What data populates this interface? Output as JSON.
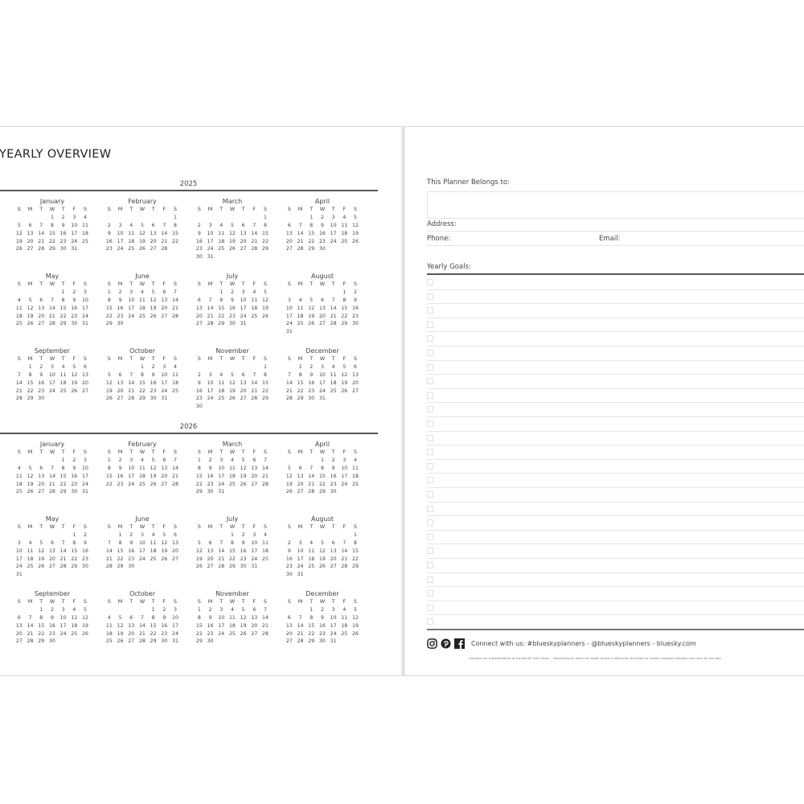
{
  "left": {
    "title": "YEARLY OVERVIEW",
    "weekdays": [
      "S",
      "M",
      "T",
      "W",
      "T",
      "F",
      "S"
    ],
    "years": [
      {
        "year": "2025",
        "months": [
          {
            "name": "January",
            "weeks": [
              ",,,1,2,3,4",
              "5,6,7,8,9,10,11",
              "12,13,14,15,16,17,18",
              "19,20,21,22,23,24,25",
              "26,27,28,29,30,31"
            ]
          },
          {
            "name": "February",
            "weeks": [
              ",,,,,,1",
              "2,3,4,5,6,7,8",
              "9,10,11,12,13,14,15",
              "16,17,18,19,20,21,22",
              "23,24,25,26,27,28"
            ]
          },
          {
            "name": "March",
            "weeks": [
              ",,,,,,1",
              "2,3,4,5,6,7,8",
              "9,10,11,12,13,14,15",
              "16,17,18,19,20,21,22",
              "23,24,25,26,27,28,29",
              "30,31"
            ]
          },
          {
            "name": "April",
            "weeks": [
              ",,1,2,3,4,5",
              "6,7,8,9,10,11,12",
              "13,14,15,16,17,18,19",
              "20,21,22,23,24,25,26",
              "27,28,29,30"
            ]
          },
          {
            "name": "May",
            "weeks": [
              ",,,,1,2,3",
              "4,5,6,7,8,9,10",
              "11,12,13,14,15,16,17",
              "18,19,20,21,22,23,24",
              "25,26,27,28,29,30,31"
            ]
          },
          {
            "name": "June",
            "weeks": [
              "1,2,3,4,5,6,7",
              "8,9,10,11,12,13,14",
              "15,16,17,18,19,20,21",
              "22,23,24,25,26,27,28",
              "29,30"
            ]
          },
          {
            "name": "July",
            "weeks": [
              ",,1,2,3,4,5",
              "6,7,8,9,10,11,12",
              "13,14,15,16,17,18,19",
              "20,21,22,23,24,25,26",
              "27,28,29,30,31"
            ]
          },
          {
            "name": "August",
            "weeks": [
              ",,,,,1,2",
              "3,4,5,6,7,8,9",
              "10,11,12,13,14,15,16",
              "17,18,19,20,21,22,23",
              "24,25,26,27,28,29,30",
              "31"
            ]
          },
          {
            "name": "September",
            "weeks": [
              ",1,2,3,4,5,6",
              "7,8,9,10,11,12,13",
              "14,15,16,17,18,19,20",
              "21,22,23,24,25,26,27",
              "28,29,30"
            ]
          },
          {
            "name": "October",
            "weeks": [
              ",,,1,2,3,4",
              "5,6,7,8,9,10,11",
              "12,13,14,15,16,17,18",
              "19,20,21,22,23,24,25",
              "26,27,28,29,30,31"
            ]
          },
          {
            "name": "November",
            "weeks": [
              ",,,,,,1",
              "2,3,4,5,6,7,8",
              "9,10,11,12,13,14,15",
              "16,17,18,19,20,21,22",
              "23,24,25,26,27,28,29",
              "30"
            ]
          },
          {
            "name": "December",
            "weeks": [
              ",1,2,3,4,5,6",
              "7,8,9,10,11,12,13",
              "14,15,16,17,18,19,20",
              "21,22,23,24,25,26,27",
              "28,29,30,31"
            ]
          }
        ]
      },
      {
        "year": "2026",
        "months": [
          {
            "name": "January",
            "weeks": [
              ",,,,1,2,3",
              "4,5,6,7,8,9,10",
              "11,12,13,14,15,16,17",
              "18,19,20,21,22,23,24",
              "25,26,27,28,29,30,31"
            ]
          },
          {
            "name": "February",
            "weeks": [
              "1,2,3,4,5,6,7",
              "8,9,10,11,12,13,14",
              "15,16,17,18,19,20,21",
              "22,23,24,25,26,27,28"
            ]
          },
          {
            "name": "March",
            "weeks": [
              "1,2,3,4,5,6,7",
              "8,9,10,11,12,13,14",
              "15,16,17,18,19,20,21",
              "22,23,24,25,26,27,28",
              "29,30,31"
            ]
          },
          {
            "name": "April",
            "weeks": [
              ",,,1,2,3,4",
              "5,6,7,8,9,10,11",
              "12,13,14,15,16,17,18",
              "19,20,21,22,23,24,25",
              "26,27,28,29,30"
            ]
          },
          {
            "name": "May",
            "weeks": [
              ",,,,,1,2",
              "3,4,5,6,7,8,9",
              "10,11,12,13,14,15,16",
              "17,18,19,20,21,22,23",
              "24,25,26,27,28,29,30",
              "31"
            ]
          },
          {
            "name": "June",
            "weeks": [
              ",1,2,3,4,5,6",
              "7,8,9,10,11,12,13",
              "14,15,16,17,18,19,20",
              "21,22,23,24,25,26,27",
              "28,29,30"
            ]
          },
          {
            "name": "July",
            "weeks": [
              ",,,1,2,3,4",
              "5,6,7,8,9,10,11",
              "12,13,14,15,16,17,18",
              "19,20,21,22,23,24,25",
              "26,27,28,29,30,31"
            ]
          },
          {
            "name": "August",
            "weeks": [
              ",,,,,,1",
              "2,3,4,5,6,7,8",
              "9,10,11,12,13,14,15",
              "16,17,18,19,20,21,22",
              "23,24,25,26,27,28,29",
              "30,31"
            ]
          },
          {
            "name": "September",
            "weeks": [
              ",,1,2,3,4,5",
              "6,7,8,9,10,11,12",
              "13,14,15,16,17,18,19",
              "20,21,22,23,24,25,26",
              "27,28,29,30"
            ]
          },
          {
            "name": "October",
            "weeks": [
              ",,,,1,2,3",
              "4,5,6,7,8,9,10",
              "11,12,13,14,15,16,17",
              "18,19,20,21,22,23,24",
              "25,26,27,28,29,30,31"
            ]
          },
          {
            "name": "November",
            "weeks": [
              "1,2,3,4,5,6,7",
              "8,9,10,11,12,13,14",
              "15,16,17,18,19,20,21",
              "22,23,24,25,26,27,28",
              "29,30"
            ]
          },
          {
            "name": "December",
            "weeks": [
              ",,1,2,3,4,5",
              "6,7,8,9,10,11,12",
              "13,14,15,16,17,18,19",
              "20,21,22,23,24,25,26",
              "27,28,29,30,31"
            ]
          }
        ]
      }
    ]
  },
  "right": {
    "belongs_label": "This Planner Belongs to:",
    "address_label": "Address:",
    "phone_label": "Phone:",
    "email_label": "Email:",
    "goals_label": "Yearly Goals:",
    "goal_count": 25,
    "footer": {
      "icons": [
        "instagram-icon",
        "pinterest-icon",
        "facebook-icon"
      ],
      "connect": "Connect with us: #blueskyplanners - @blueskyplanners - bluesky.com",
      "note": "Holidays are representative of the Pacific Time Zone.  –  Depending on when the moon phase is observed, the dates of certain religious holidays may vary by one day."
    }
  }
}
